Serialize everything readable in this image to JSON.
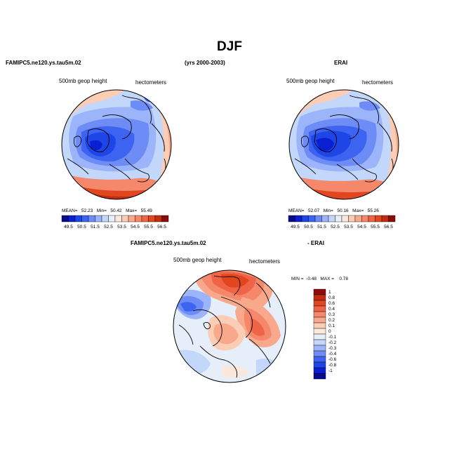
{
  "figure": {
    "title": "DJF"
  },
  "panels": [
    {
      "case": "FAMIPC5.ne120.ys.tau5m.02",
      "years": "(yrs 2000-2003)",
      "variable": "500mb geop height",
      "units": "hectometers",
      "stats": {
        "mean_label": "MEAN=",
        "mean": "52.23",
        "min_label": "Min=",
        "min": "50.42",
        "max_label": "Max=",
        "max": "55.49"
      }
    },
    {
      "case": "ERAI",
      "variable": "500mb geop height",
      "units": "hectometers",
      "stats": {
        "mean_label": "MEAN=",
        "mean": "52.07",
        "min_label": "Min=",
        "min": "50.16",
        "max_label": "Max=",
        "max": "55.26"
      }
    },
    {
      "case": "FAMIPC5.ne120.ys.tau5m.02",
      "case_suffix": "- ERAI",
      "variable": "500mb geop height",
      "units": "hectometers",
      "stats": {
        "min_label": "MIN =",
        "min": "-0.48",
        "max_label": "MAX =",
        "max": "0.78"
      }
    }
  ],
  "colorbar_abs": {
    "ticks": [
      "49.5",
      "50.5",
      "51.5",
      "52.5",
      "53.5",
      "54.5",
      "55.5",
      "56.5"
    ],
    "colors": [
      "#0a0a8c",
      "#0a1ed2",
      "#1e46e6",
      "#3c64f0",
      "#6e8cf5",
      "#9bb4fa",
      "#c3d7fa",
      "#e6eefa",
      "#fbe8dc",
      "#fbcdb4",
      "#f8a98c",
      "#f5876b",
      "#ef6446",
      "#e1461e",
      "#c32d0f",
      "#8c0c0c"
    ]
  },
  "colorbar_diff": {
    "ticks": [
      "1",
      "0.8",
      "0.6",
      "0.4",
      "0.3",
      "0.2",
      "0.1",
      "0",
      "-0.1",
      "-0.2",
      "-0.3",
      "-0.4",
      "-0.6",
      "-0.8",
      "-1"
    ],
    "colors": [
      "#8c0c0c",
      "#c32d0f",
      "#e1461e",
      "#ef6446",
      "#f5876b",
      "#f8a98c",
      "#fbcdb4",
      "#fbe8dc",
      "#e6eefa",
      "#c3d7fa",
      "#9bb4fa",
      "#6e8cf5",
      "#3c64f0",
      "#1e46e6",
      "#0a1ed2",
      "#0a0a8c"
    ]
  }
}
